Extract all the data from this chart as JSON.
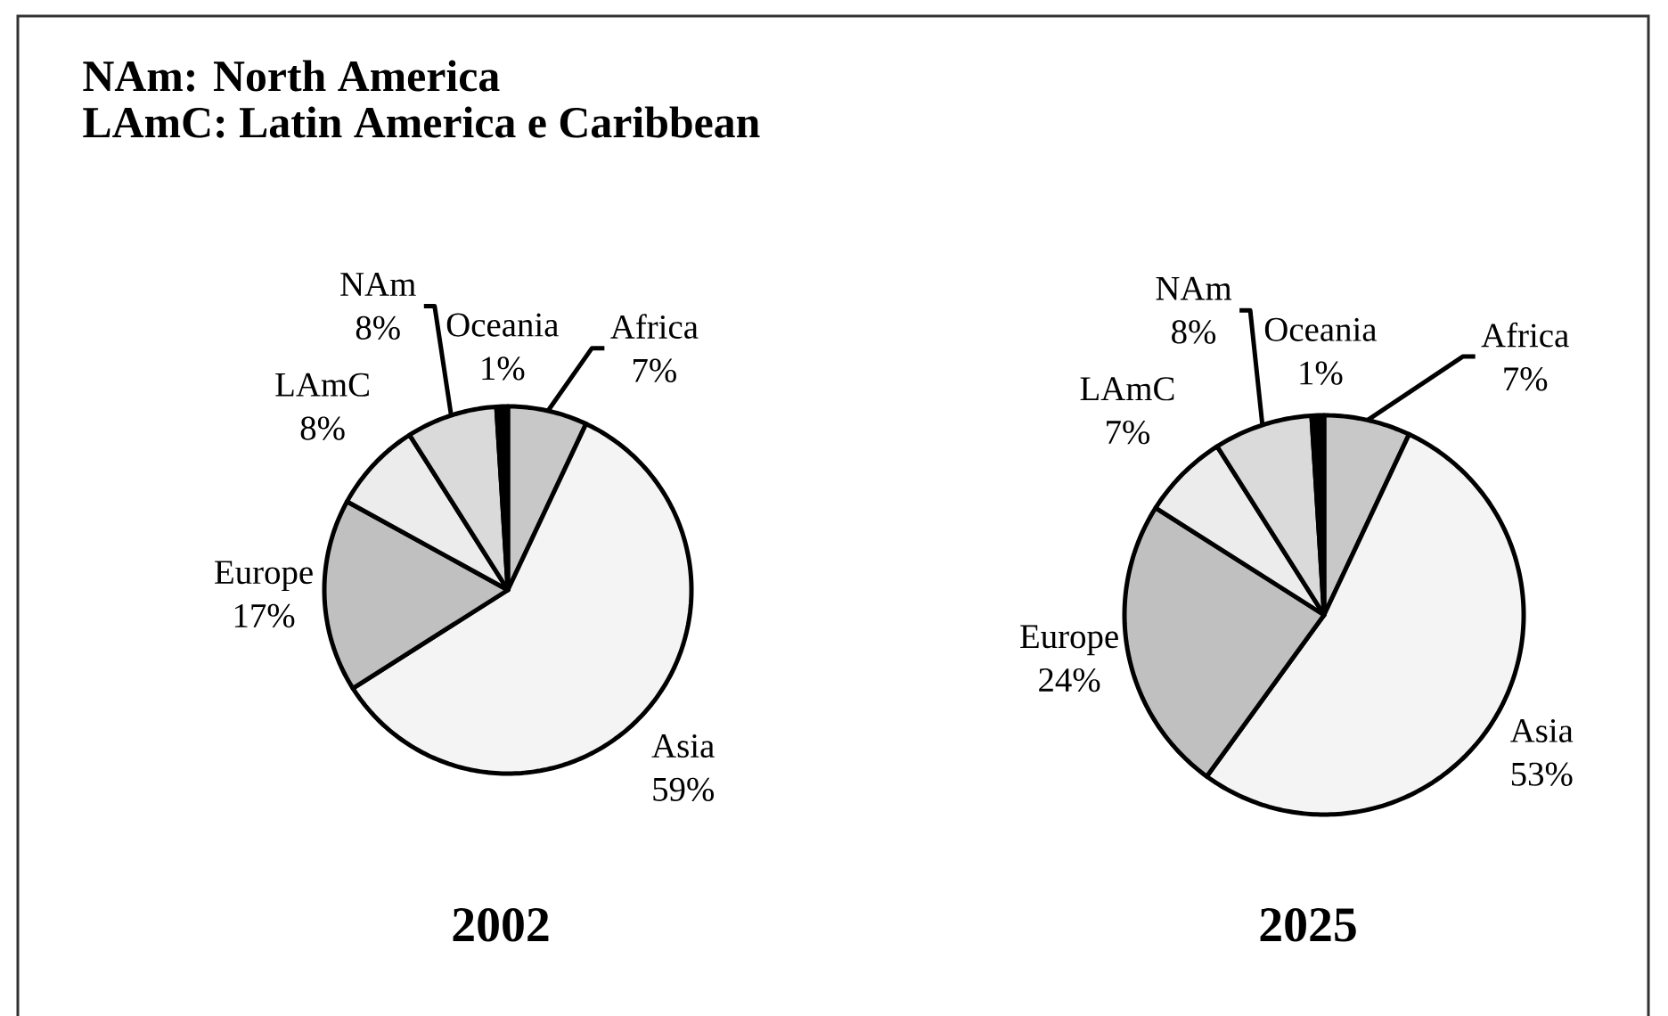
{
  "chart_data": [
    {
      "type": "pie",
      "title": "2002",
      "annotations": [
        "NAm: North America",
        "LAmC: Latin America e Caribbean"
      ],
      "categories": [
        "Africa",
        "Asia",
        "Europe",
        "LAmC",
        "NAm",
        "Oceania"
      ],
      "values": [
        7,
        59,
        17,
        8,
        8,
        1
      ],
      "value_labels": [
        "7%",
        "59%",
        "17%",
        "8%",
        "8%",
        "1%"
      ],
      "colors": [
        "#c8c8c8",
        "#f4f4f4",
        "#c0c0c0",
        "#ececec",
        "#dadada",
        "#000000"
      ]
    },
    {
      "type": "pie",
      "title": "2025",
      "categories": [
        "Africa",
        "Asia",
        "Europe",
        "LAmC",
        "NAm",
        "Oceania"
      ],
      "values": [
        7,
        53,
        24,
        7,
        8,
        1
      ],
      "value_labels": [
        "7%",
        "53%",
        "24%",
        "7%",
        "8%",
        "1%"
      ],
      "colors": [
        "#c8c8c8",
        "#f4f4f4",
        "#c0c0c0",
        "#ececec",
        "#dadada",
        "#000000"
      ]
    }
  ]
}
